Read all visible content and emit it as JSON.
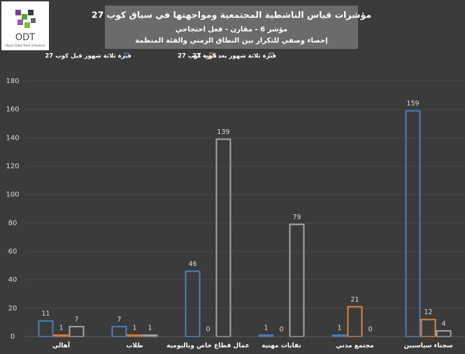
{
  "logo": {
    "name": "ODT",
    "tagline": "Open Data Tank Initiative"
  },
  "chart_data": {
    "type": "bar",
    "title": "مؤشرات قياس الناشطية المجتمعية ومواجهتها في سياق كوب 27",
    "subtitle": "مؤشر 6 - مقارن - فعل احتجاجي",
    "description": "إحصاء وصفي للتكرار بين النطاق الزمني والفئة المنظمة",
    "categories": [
      "أهالي",
      "طلاب",
      "عمال قطاع خاص وباليومية",
      "نقابات مهنية",
      "مجتمع مدني",
      "سجناء سياسيين"
    ],
    "series": [
      {
        "name": "فترة ثلاثة شهور قبل كوب 27",
        "color": "#4a7fc1",
        "values": [
          11,
          7,
          46,
          1,
          1,
          159
        ]
      },
      {
        "name": "فترة كوب 27",
        "color": "#e0823a",
        "values": [
          1,
          1,
          0,
          0,
          21,
          12
        ]
      },
      {
        "name": "فترة ثلاثة شهور بعد كوب 27",
        "color": "#a6a6a6",
        "values": [
          7,
          1,
          139,
          79,
          0,
          4
        ]
      }
    ],
    "ylim": [
      0,
      180
    ],
    "yticks": [
      0,
      20,
      40,
      60,
      80,
      100,
      120,
      140,
      160,
      180
    ],
    "grid": true
  }
}
